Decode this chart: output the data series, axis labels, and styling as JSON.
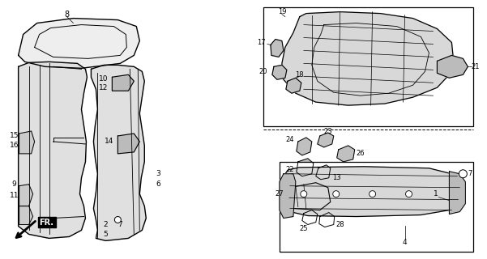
{
  "bg_color": "#ffffff",
  "line_color": "#000000",
  "fig_width": 6.01,
  "fig_height": 3.2,
  "dpi": 100
}
